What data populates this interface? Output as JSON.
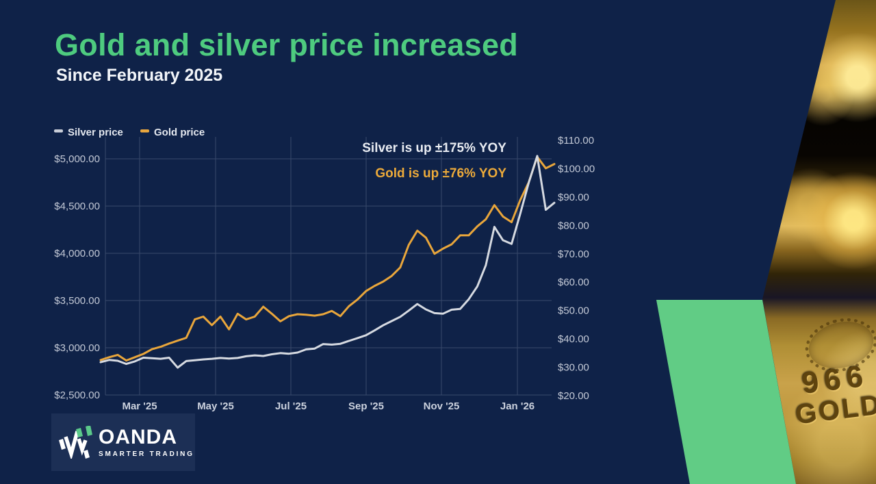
{
  "page": {
    "background": "#0f2248",
    "accent_green": "#4ecb7f",
    "shape_green": "#61cc85"
  },
  "header": {
    "title": "Gold and silver price increased",
    "subtitle": "Since February 2025"
  },
  "legend": [
    {
      "label": "Silver price",
      "color": "#c9ced8"
    },
    {
      "label": "Gold price",
      "color": "#eaa73e"
    }
  ],
  "chart_data": {
    "type": "line",
    "title": "Gold and silver price increased",
    "subtitle": "Since February 2025",
    "grid": true,
    "legend_position": "top-left",
    "x_tick_labels": [
      "Mar '25",
      "May '25",
      "Jul '25",
      "Sep '25",
      "Nov '25",
      "Jan '26"
    ],
    "left_axis": {
      "min": 2500,
      "max": 5000,
      "tick_values": [
        2500,
        3000,
        3500,
        4000,
        4500,
        5000
      ],
      "tick_labels": [
        "$2,500.00",
        "$3,000.00",
        "$3,500.00",
        "$4,000.00",
        "$4,500.00",
        "$5,000.00"
      ]
    },
    "right_axis": {
      "min": 20,
      "max": 110,
      "tick_values": [
        20,
        30,
        40,
        50,
        60,
        70,
        80,
        90,
        100,
        110
      ],
      "tick_labels": [
        "$20.00",
        "$30.00",
        "$40.00",
        "$50.00",
        "$60.00",
        "$70.00",
        "$80.00",
        "$90.00",
        "$100.00",
        "$110.00"
      ]
    },
    "annotations": {
      "silver": {
        "text": "Silver is up ±175% YOY",
        "color": "#e9ecf2"
      },
      "gold": {
        "text": "Gold is up ±76% YOY",
        "color": "#ecaa3a"
      }
    },
    "series": [
      {
        "name": "Gold price",
        "axis": "left",
        "color": "#e9a63b",
        "values": [
          2870,
          2900,
          2925,
          2865,
          2900,
          2935,
          2985,
          3010,
          3045,
          3075,
          3105,
          3300,
          3330,
          3240,
          3330,
          3195,
          3360,
          3300,
          3330,
          3435,
          3360,
          3280,
          3335,
          3355,
          3350,
          3340,
          3355,
          3390,
          3335,
          3440,
          3510,
          3600,
          3655,
          3700,
          3760,
          3850,
          4090,
          4240,
          4165,
          3995,
          4050,
          4095,
          4190,
          4190,
          4285,
          4360,
          4510,
          4390,
          4330,
          4560,
          4750,
          5020,
          4900,
          4945
        ]
      },
      {
        "name": "Silver price",
        "axis": "right",
        "color": "#d6dae1",
        "values": [
          31.8,
          32.6,
          32.3,
          31.2,
          32.1,
          33.4,
          33.2,
          33.0,
          33.4,
          29.9,
          32.2,
          32.5,
          32.8,
          33.0,
          33.3,
          33.1,
          33.3,
          33.9,
          34.2,
          34.0,
          34.6,
          35.0,
          34.8,
          35.2,
          36.3,
          36.6,
          38.2,
          38.0,
          38.3,
          39.3,
          40.3,
          41.3,
          43.0,
          44.8,
          46.3,
          47.8,
          50.0,
          52.3,
          50.4,
          49.1,
          48.9,
          50.3,
          50.6,
          54.0,
          58.5,
          66.0,
          79.5,
          74.8,
          73.5,
          84.0,
          95.0,
          104.5,
          85.5,
          88.0
        ]
      }
    ]
  },
  "logo": {
    "brand": "OANDA",
    "tagline": "SMARTER TRADING"
  },
  "photo": {
    "stamp": [
      "966",
      "GOLD"
    ]
  }
}
